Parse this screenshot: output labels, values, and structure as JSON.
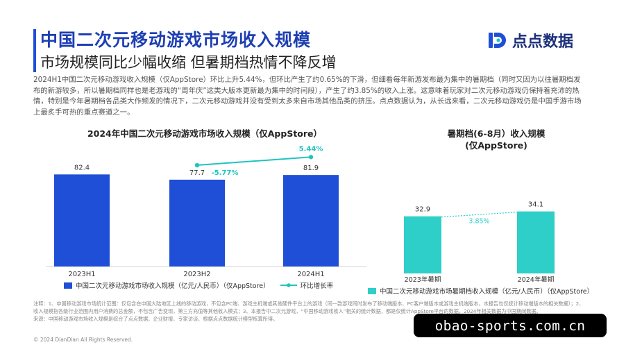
{
  "header": {
    "title": "中国二次元移动游戏市场收入规模",
    "subtitle": "市场规模同比少幅收缩 但暑期档热情不降反增",
    "brand": "点点数据"
  },
  "paragraph": "2024H1中国二次元移动游戏收入规模（仅AppStore）环比上升5.44%，但环比产生了约0.65%的下滑，但细看每年新游发布最为集中的暑期档（同时又因为以往暑期档发布的新游较多，所以暑期档同样也是老游戏的“周年庆”这类大版本更新最为集中的时间段），产生了约3.85%的收入上涨。这意味着玩家对二次元移动游戏仍保持着充沛的热情，特别是今年暑期档各品类大作频发的情况下，二次元移动游戏并没有受到太多来自市场其他品类的挤压。点点数据认为，从长远来看，二次元移动游戏仍是中国手游市场上最炙手可热的重点赛道之一。",
  "chart_data": [
    {
      "type": "bar",
      "title": "2024年中国二次元移动游戏市场收入规模（仅AppStore）",
      "categories": [
        "2023H1",
        "2023H2",
        "2024H1"
      ],
      "series": [
        {
          "name": "中国二次元移动游戏市场收入规模（亿元/人民币）（仅AppStore）",
          "type": "bar",
          "values": [
            82.4,
            77.7,
            81.9
          ],
          "labels": [
            "82.4",
            "77.7",
            "81.9"
          ],
          "color": "#1f4fd6"
        },
        {
          "name": "环比增长率",
          "type": "line",
          "values": [
            null,
            -5.77,
            5.44
          ],
          "labels": [
            "",
            "-5.77%",
            "5.44%"
          ],
          "color": "#1fc4c0"
        }
      ],
      "ylim": [
        0,
        100
      ],
      "legend": "bottom"
    },
    {
      "type": "bar",
      "title": "暑期档(6-8月）收入规模（仅AppStore）",
      "title_lines": [
        "暑期档(6-8月）收入规模",
        "(仅AppStore)"
      ],
      "categories": [
        "2023年暑期",
        "2024年暑期"
      ],
      "series": [
        {
          "name": "中国二次元移动游戏市场暑期档收入规模（亿元/人民币）（仅AppStore）",
          "values": [
            32.9,
            34.1
          ],
          "labels": [
            "32.9",
            "34.1"
          ],
          "color": "#2ecfc8"
        }
      ],
      "annotation": "3.85%",
      "ylim": [
        0,
        40
      ],
      "legend": "bottom"
    }
  ],
  "notes": {
    "line1": "注释：1、中国移动游戏市场统计范围：仅包含在中国大陆地区上线的移动游戏，不包含PC端、游戏主机端或其他硬件平台上的游戏（同一款游戏同时发布了移动端版本、PC客户端版本或游戏主机端版本，本报告也仅统计移动端版本的相关数据）；2、收入规模指各级行业范围内用户消费的总金额，不包含广告变现，第三方充值等其他收入模式；3、本报告中二次元游戏，“中国移动游戏收入”相关的统计数据，都是仅统计AppStore平台的数据，2024年相关数据为中国期间数据。",
    "line2": "来源：中国移动游戏市场收入规模是综合了点点数据、企业财报、专家访谈、根据点点数据统计模型核算所得。"
  },
  "footer": {
    "copyright": "© 2024 DianDian All Rights Reserved.",
    "watermark": "obao-sports.com.cn"
  },
  "colors": {
    "title": "#1e3fb3",
    "primary_bar": "#1f4fd6",
    "teal_line": "#1fc4c0",
    "summer_bar": "#2ecfc8"
  }
}
